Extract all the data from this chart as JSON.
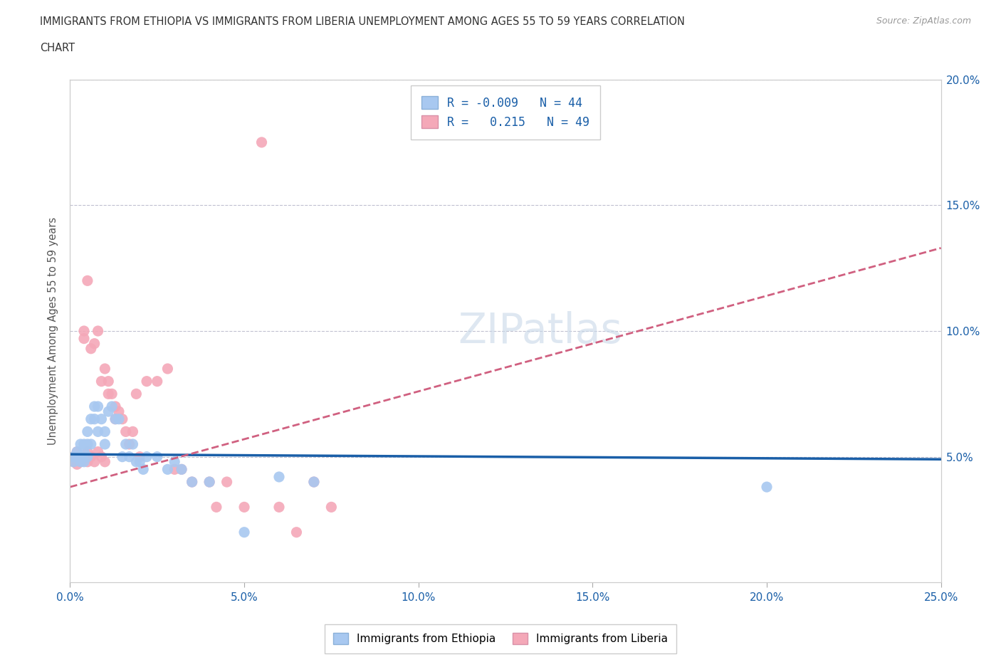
{
  "title_line1": "IMMIGRANTS FROM ETHIOPIA VS IMMIGRANTS FROM LIBERIA UNEMPLOYMENT AMONG AGES 55 TO 59 YEARS CORRELATION",
  "title_line2": "CHART",
  "source": "Source: ZipAtlas.com",
  "ylabel": "Unemployment Among Ages 55 to 59 years",
  "xlim": [
    0.0,
    0.25
  ],
  "ylim": [
    0.0,
    0.2
  ],
  "xticks": [
    0.0,
    0.05,
    0.1,
    0.15,
    0.2,
    0.25
  ],
  "yticks": [
    0.05,
    0.1,
    0.15,
    0.2
  ],
  "ytick_labels": [
    "5.0%",
    "10.0%",
    "15.0%",
    "20.0%"
  ],
  "xtick_labels": [
    "0.0%",
    "5.0%",
    "10.0%",
    "15.0%",
    "20.0%",
    "25.0%"
  ],
  "ethiopia_color": "#a8c8f0",
  "liberia_color": "#f4a8b8",
  "ethiopia_line_color": "#1a5fa8",
  "liberia_line_color": "#d06080",
  "R_ethiopia": -0.009,
  "N_ethiopia": 44,
  "R_liberia": 0.215,
  "N_liberia": 49,
  "legend_label_ethiopia": "Immigrants from Ethiopia",
  "legend_label_liberia": "Immigrants from Liberia",
  "eth_line_x0": 0.0,
  "eth_line_y0": 0.051,
  "eth_line_x1": 0.25,
  "eth_line_y1": 0.049,
  "lib_line_x0": 0.0,
  "lib_line_y0": 0.038,
  "lib_line_x1": 0.25,
  "lib_line_y1": 0.133,
  "ethiopia_x": [
    0.001,
    0.001,
    0.002,
    0.002,
    0.003,
    0.003,
    0.003,
    0.004,
    0.004,
    0.004,
    0.005,
    0.005,
    0.005,
    0.006,
    0.006,
    0.007,
    0.007,
    0.008,
    0.008,
    0.009,
    0.01,
    0.01,
    0.011,
    0.012,
    0.013,
    0.014,
    0.015,
    0.016,
    0.017,
    0.018,
    0.019,
    0.02,
    0.021,
    0.022,
    0.025,
    0.028,
    0.03,
    0.032,
    0.035,
    0.04,
    0.05,
    0.06,
    0.07,
    0.2
  ],
  "ethiopia_y": [
    0.05,
    0.048,
    0.052,
    0.05,
    0.055,
    0.05,
    0.048,
    0.055,
    0.052,
    0.048,
    0.06,
    0.055,
    0.05,
    0.065,
    0.055,
    0.07,
    0.065,
    0.07,
    0.06,
    0.065,
    0.06,
    0.055,
    0.068,
    0.07,
    0.065,
    0.065,
    0.05,
    0.055,
    0.05,
    0.055,
    0.048,
    0.048,
    0.045,
    0.05,
    0.05,
    0.045,
    0.048,
    0.045,
    0.04,
    0.04,
    0.02,
    0.042,
    0.04,
    0.038
  ],
  "liberia_x": [
    0.001,
    0.001,
    0.002,
    0.002,
    0.003,
    0.003,
    0.004,
    0.004,
    0.004,
    0.005,
    0.005,
    0.005,
    0.006,
    0.006,
    0.007,
    0.007,
    0.008,
    0.008,
    0.009,
    0.009,
    0.01,
    0.01,
    0.011,
    0.011,
    0.012,
    0.013,
    0.013,
    0.014,
    0.015,
    0.016,
    0.017,
    0.018,
    0.019,
    0.02,
    0.022,
    0.025,
    0.028,
    0.03,
    0.032,
    0.035,
    0.04,
    0.042,
    0.045,
    0.05,
    0.055,
    0.06,
    0.065,
    0.07,
    0.075
  ],
  "liberia_y": [
    0.05,
    0.048,
    0.052,
    0.047,
    0.05,
    0.048,
    0.1,
    0.097,
    0.05,
    0.12,
    0.052,
    0.048,
    0.093,
    0.05,
    0.095,
    0.048,
    0.052,
    0.1,
    0.08,
    0.05,
    0.085,
    0.048,
    0.08,
    0.075,
    0.075,
    0.07,
    0.065,
    0.068,
    0.065,
    0.06,
    0.055,
    0.06,
    0.075,
    0.05,
    0.08,
    0.08,
    0.085,
    0.045,
    0.045,
    0.04,
    0.04,
    0.03,
    0.04,
    0.03,
    0.175,
    0.03,
    0.02,
    0.04,
    0.03
  ]
}
